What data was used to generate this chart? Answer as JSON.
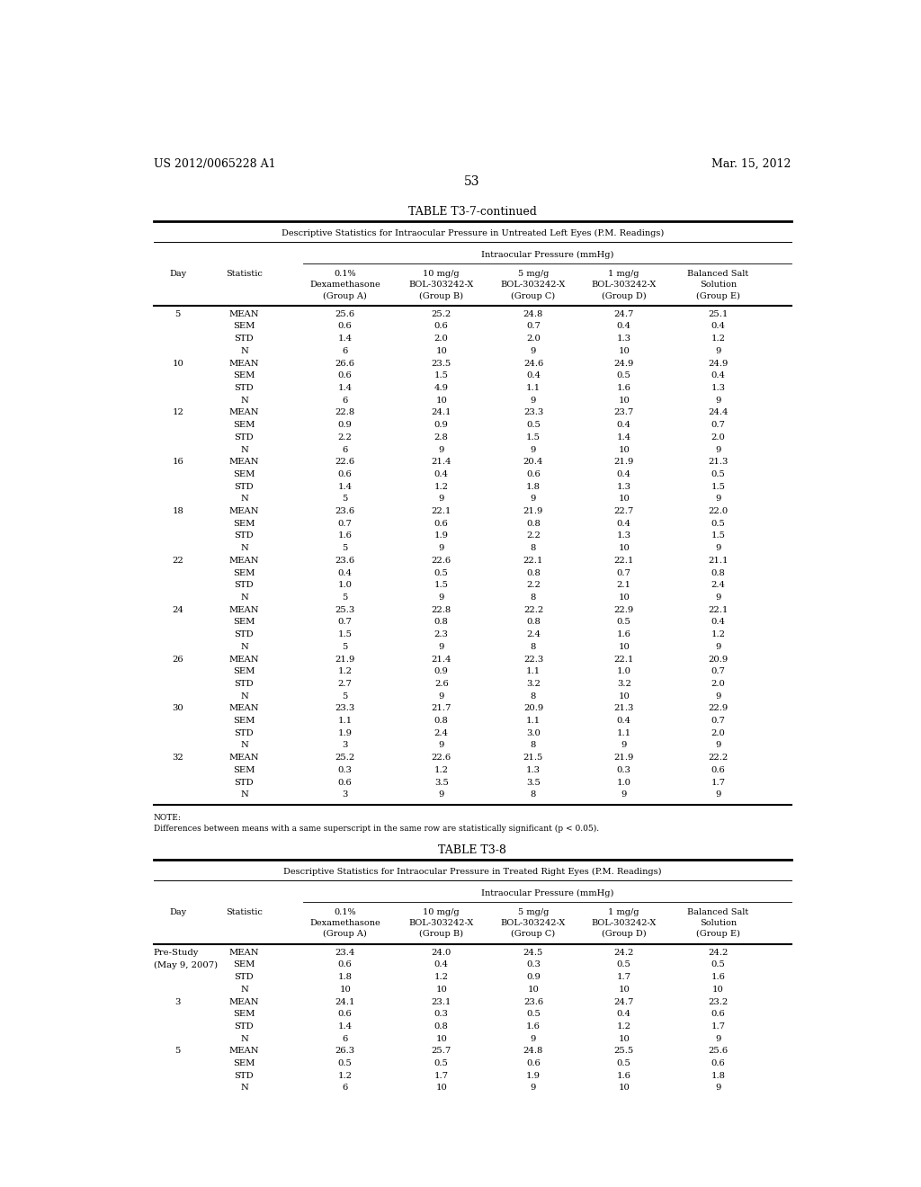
{
  "header_left": "US 2012/0065228 A1",
  "header_right": "Mar. 15, 2012",
  "page_number": "53",
  "table1_title": "TABLE T3-7-continued",
  "table1_subtitle": "Descriptive Statistics for Intraocular Pressure in Untreated Left Eyes (P.M. Readings)",
  "table1_iop_label": "Intraocular Pressure (mmHg)",
  "table1_col_headers": [
    [
      "0.1%",
      "Dexamethasone",
      "(Group A)"
    ],
    [
      "10 mg/g",
      "BOL-303242-X",
      "(Group B)"
    ],
    [
      "5 mg/g",
      "BOL-303242-X",
      "(Group C)"
    ],
    [
      "1 mg/g",
      "BOL-303242-X",
      "(Group D)"
    ],
    [
      "Balanced Salt",
      "Solution",
      "(Group E)"
    ]
  ],
  "table1_data": [
    [
      "5",
      "MEAN",
      "25.6",
      "25.2",
      "24.8",
      "24.7",
      "25.1"
    ],
    [
      "",
      "SEM",
      "0.6",
      "0.6",
      "0.7",
      "0.4",
      "0.4"
    ],
    [
      "",
      "STD",
      "1.4",
      "2.0",
      "2.0",
      "1.3",
      "1.2"
    ],
    [
      "",
      "N",
      "6",
      "10",
      "9",
      "10",
      "9"
    ],
    [
      "10",
      "MEAN",
      "26.6",
      "23.5",
      "24.6",
      "24.9",
      "24.9"
    ],
    [
      "",
      "SEM",
      "0.6",
      "1.5",
      "0.4",
      "0.5",
      "0.4"
    ],
    [
      "",
      "STD",
      "1.4",
      "4.9",
      "1.1",
      "1.6",
      "1.3"
    ],
    [
      "",
      "N",
      "6",
      "10",
      "9",
      "10",
      "9"
    ],
    [
      "12",
      "MEAN",
      "22.8",
      "24.1",
      "23.3",
      "23.7",
      "24.4"
    ],
    [
      "",
      "SEM",
      "0.9",
      "0.9",
      "0.5",
      "0.4",
      "0.7"
    ],
    [
      "",
      "STD",
      "2.2",
      "2.8",
      "1.5",
      "1.4",
      "2.0"
    ],
    [
      "",
      "N",
      "6",
      "9",
      "9",
      "10",
      "9"
    ],
    [
      "16",
      "MEAN",
      "22.6",
      "21.4",
      "20.4",
      "21.9",
      "21.3"
    ],
    [
      "",
      "SEM",
      "0.6",
      "0.4",
      "0.6",
      "0.4",
      "0.5"
    ],
    [
      "",
      "STD",
      "1.4",
      "1.2",
      "1.8",
      "1.3",
      "1.5"
    ],
    [
      "",
      "N",
      "5",
      "9",
      "9",
      "10",
      "9"
    ],
    [
      "18",
      "MEAN",
      "23.6",
      "22.1",
      "21.9",
      "22.7",
      "22.0"
    ],
    [
      "",
      "SEM",
      "0.7",
      "0.6",
      "0.8",
      "0.4",
      "0.5"
    ],
    [
      "",
      "STD",
      "1.6",
      "1.9",
      "2.2",
      "1.3",
      "1.5"
    ],
    [
      "",
      "N",
      "5",
      "9",
      "8",
      "10",
      "9"
    ],
    [
      "22",
      "MEAN",
      "23.6",
      "22.6",
      "22.1",
      "22.1",
      "21.1"
    ],
    [
      "",
      "SEM",
      "0.4",
      "0.5",
      "0.8",
      "0.7",
      "0.8"
    ],
    [
      "",
      "STD",
      "1.0",
      "1.5",
      "2.2",
      "2.1",
      "2.4"
    ],
    [
      "",
      "N",
      "5",
      "9",
      "8",
      "10",
      "9"
    ],
    [
      "24",
      "MEAN",
      "25.3",
      "22.8",
      "22.2",
      "22.9",
      "22.1"
    ],
    [
      "",
      "SEM",
      "0.7",
      "0.8",
      "0.8",
      "0.5",
      "0.4"
    ],
    [
      "",
      "STD",
      "1.5",
      "2.3",
      "2.4",
      "1.6",
      "1.2"
    ],
    [
      "",
      "N",
      "5",
      "9",
      "8",
      "10",
      "9"
    ],
    [
      "26",
      "MEAN",
      "21.9",
      "21.4",
      "22.3",
      "22.1",
      "20.9"
    ],
    [
      "",
      "SEM",
      "1.2",
      "0.9",
      "1.1",
      "1.0",
      "0.7"
    ],
    [
      "",
      "STD",
      "2.7",
      "2.6",
      "3.2",
      "3.2",
      "2.0"
    ],
    [
      "",
      "N",
      "5",
      "9",
      "8",
      "10",
      "9"
    ],
    [
      "30",
      "MEAN",
      "23.3",
      "21.7",
      "20.9",
      "21.3",
      "22.9"
    ],
    [
      "",
      "SEM",
      "1.1",
      "0.8",
      "1.1",
      "0.4",
      "0.7"
    ],
    [
      "",
      "STD",
      "1.9",
      "2.4",
      "3.0",
      "1.1",
      "2.0"
    ],
    [
      "",
      "N",
      "3",
      "9",
      "8",
      "9",
      "9"
    ],
    [
      "32",
      "MEAN",
      "25.2",
      "22.6",
      "21.5",
      "21.9",
      "22.2"
    ],
    [
      "",
      "SEM",
      "0.3",
      "1.2",
      "1.3",
      "0.3",
      "0.6"
    ],
    [
      "",
      "STD",
      "0.6",
      "3.5",
      "3.5",
      "1.0",
      "1.7"
    ],
    [
      "",
      "N",
      "3",
      "9",
      "8",
      "9",
      "9"
    ]
  ],
  "table1_note": "NOTE:",
  "table1_note2": "Differences between means with a same superscript in the same row are statistically significant (p < 0.05).",
  "table2_title": "TABLE T3-8",
  "table2_subtitle": "Descriptive Statistics for Intraocular Pressure in Treated Right Eyes (P.M. Readings)",
  "table2_iop_label": "Intraocular Pressure (mmHg)",
  "table2_col_headers": [
    [
      "0.1%",
      "Dexamethasone",
      "(Group A)"
    ],
    [
      "10 mg/g",
      "BOL-303242-X",
      "(Group B)"
    ],
    [
      "5 mg/g",
      "BOL-303242-X",
      "(Group C)"
    ],
    [
      "1 mg/g",
      "BOL-303242-X",
      "(Group D)"
    ],
    [
      "Balanced Salt",
      "Solution",
      "(Group E)"
    ]
  ],
  "table2_data": [
    [
      "Pre-Study",
      "MEAN",
      "23.4",
      "24.0",
      "24.5",
      "24.2",
      "24.2"
    ],
    [
      "(May 9, 2007)",
      "SEM",
      "0.6",
      "0.4",
      "0.3",
      "0.5",
      "0.5"
    ],
    [
      "",
      "STD",
      "1.8",
      "1.2",
      "0.9",
      "1.7",
      "1.6"
    ],
    [
      "",
      "N",
      "10",
      "10",
      "10",
      "10",
      "10"
    ],
    [
      "3",
      "MEAN",
      "24.1",
      "23.1",
      "23.6",
      "24.7",
      "23.2"
    ],
    [
      "",
      "SEM",
      "0.6",
      "0.3",
      "0.5",
      "0.4",
      "0.6"
    ],
    [
      "",
      "STD",
      "1.4",
      "0.8",
      "1.6",
      "1.2",
      "1.7"
    ],
    [
      "",
      "N",
      "6",
      "10",
      "9",
      "10",
      "9"
    ],
    [
      "5",
      "MEAN",
      "26.3",
      "25.7",
      "24.8",
      "25.5",
      "25.6"
    ],
    [
      "",
      "SEM",
      "0.5",
      "0.5",
      "0.6",
      "0.5",
      "0.6"
    ],
    [
      "",
      "STD",
      "1.2",
      "1.7",
      "1.9",
      "1.6",
      "1.8"
    ],
    [
      "",
      "N",
      "6",
      "10",
      "9",
      "10",
      "9"
    ]
  ]
}
